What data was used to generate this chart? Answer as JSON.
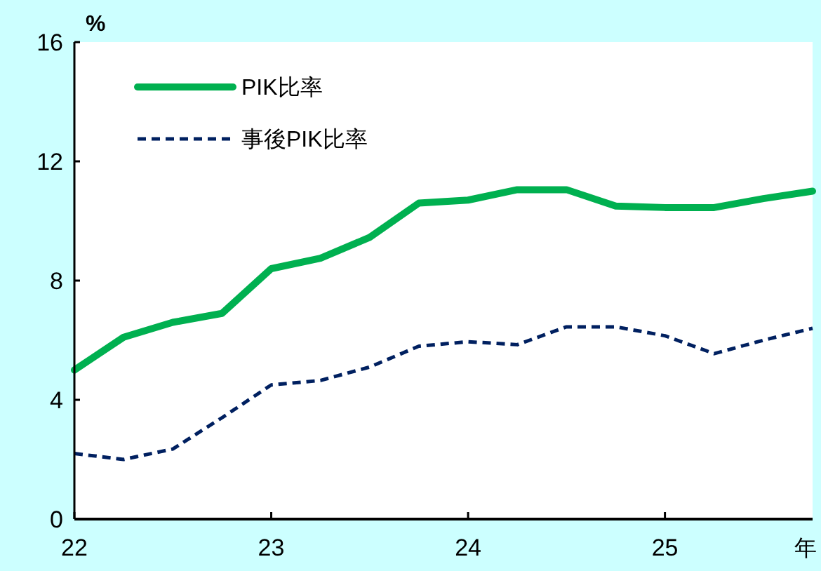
{
  "chart_data": {
    "type": "line",
    "ylabel": "%",
    "xlabel": "年",
    "x": [
      22,
      22.25,
      22.5,
      22.75,
      23,
      23.25,
      23.5,
      23.75,
      24,
      24.25,
      24.5,
      24.75,
      25,
      25.25,
      25.5,
      25.75
    ],
    "series": [
      {
        "name": "PIK比率",
        "color": "#00b050",
        "line_style": "solid",
        "values": [
          5.0,
          6.1,
          6.6,
          6.9,
          8.4,
          8.75,
          9.45,
          10.6,
          10.7,
          11.05,
          11.05,
          10.5,
          10.45,
          10.45,
          10.75,
          11.0
        ]
      },
      {
        "name": "事後PIK比率",
        "color": "#002060",
        "line_style": "dashed",
        "values": [
          2.2,
          2.0,
          2.35,
          3.4,
          4.5,
          4.65,
          5.1,
          5.8,
          5.95,
          5.85,
          6.45,
          6.45,
          6.15,
          5.55,
          6.0,
          6.4
        ]
      }
    ],
    "xlim": [
      22,
      25.75
    ],
    "xticks": [
      22,
      23,
      24,
      25
    ],
    "ylim": [
      0,
      16
    ],
    "yticks": [
      0,
      4,
      8,
      12,
      16
    ],
    "grid": false,
    "legend": "top left",
    "marker": "none"
  }
}
